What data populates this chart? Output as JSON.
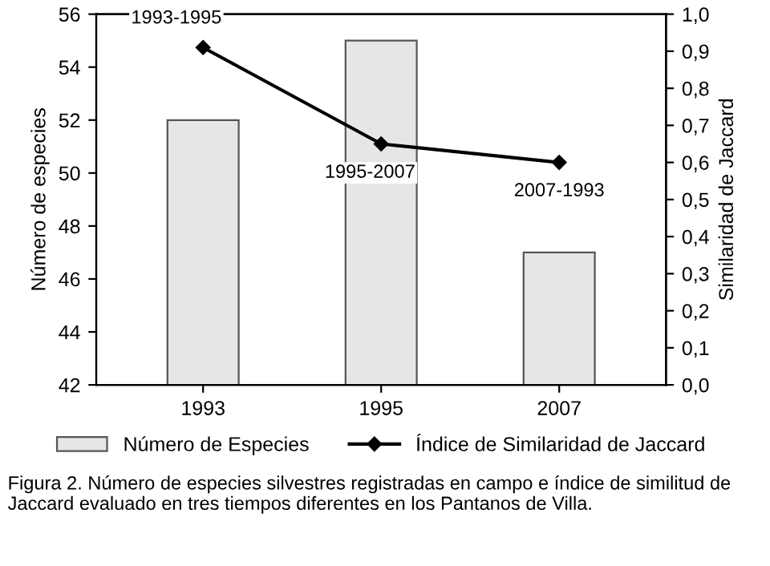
{
  "chart_data": {
    "type": "bar",
    "categories": [
      "1993",
      "1995",
      "2007"
    ],
    "ylabel": "Número de especies",
    "y2label": "Similaridad de Jaccard",
    "series": [
      {
        "name": "Número de Especies",
        "color": "#e6e6e6",
        "values": [
          52,
          55,
          47
        ]
      },
      {
        "name": "Índice de Similaridad de Jaccard",
        "type": "line",
        "axis": "y2",
        "color": "#000000",
        "values": [
          0.91,
          0.65,
          0.6
        ],
        "marker": "diamond"
      }
    ],
    "ylim": [
      42,
      56
    ],
    "yticks": [
      42,
      44,
      46,
      48,
      50,
      52,
      54,
      56
    ],
    "y2lim": [
      0,
      1
    ],
    "y2ticks": [
      {
        "value": 0,
        "label": "0,0"
      },
      {
        "value": 0.1,
        "label": "0,1"
      },
      {
        "value": 0.2,
        "label": "0,2"
      },
      {
        "value": 0.3,
        "label": "0,3"
      },
      {
        "value": 0.4,
        "label": "0,4"
      },
      {
        "value": 0.5,
        "label": "0,5"
      },
      {
        "value": 0.6,
        "label": "0,6"
      },
      {
        "value": 0.7,
        "label": "0,7"
      },
      {
        "value": 0.8,
        "label": "0,8"
      },
      {
        "value": 0.9,
        "label": "0,9"
      },
      {
        "value": 1,
        "label": "1,0"
      }
    ],
    "annotations": [
      "1993-1995",
      "1995-2007",
      "2007-1993",
      "Figura 2. Número de especies silvestres registradas en campo e índice de similitud de Jaccard evaluado en tres tiempos diferentes en los Pantanos de Villa."
    ],
    "legend": "bottom",
    "grid": false
  }
}
